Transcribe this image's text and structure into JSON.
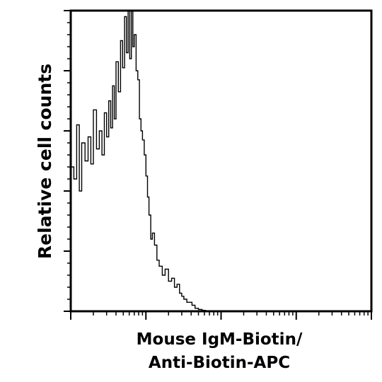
{
  "chart_data": {
    "type": "area",
    "title": "",
    "ylabel": "Relative cell counts",
    "xlabel_lines": [
      "Mouse IgM-Biotin/",
      "Anti-Biotin-APC"
    ],
    "x_scale": "log",
    "xlim": [
      1,
      10000
    ],
    "ylim": [
      0,
      100
    ],
    "x_major_ticks": [
      1,
      10,
      100,
      1000,
      10000
    ],
    "y_major_ticks": [
      0,
      20,
      40,
      60,
      80,
      100
    ],
    "tick_labels_shown": false,
    "grid": false,
    "legend": "none",
    "colors": {
      "line": "#000000",
      "background": "#ffffff"
    },
    "series": [
      {
        "x": [
          1.0,
          1.1,
          1.2,
          1.3,
          1.4,
          1.55,
          1.7,
          1.85,
          2.0,
          2.2,
          2.4,
          2.6,
          2.8,
          3.0,
          3.2,
          3.4,
          3.6,
          3.8,
          4.0,
          4.3,
          4.6,
          4.9,
          5.2,
          5.5,
          5.8,
          6.1,
          6.4,
          6.7,
          7.0,
          7.4,
          7.8,
          8.2,
          8.6,
          9.0,
          9.5,
          10.0,
          10.5,
          11.0,
          11.6,
          12.2,
          13.0,
          14.0,
          15.0,
          16.5,
          18.0,
          20.0,
          22.0,
          24.0,
          26.0,
          28.0,
          30.0,
          32.0,
          35.0,
          38.0,
          41.0,
          45.0,
          50.0,
          56.0,
          62.0
        ],
        "y": [
          48,
          44,
          62,
          40,
          56,
          50,
          58,
          49,
          67,
          54,
          60,
          52,
          66,
          58,
          70,
          61,
          75,
          64,
          83,
          73,
          90,
          81,
          98,
          86,
          100,
          84,
          100,
          88,
          92,
          80,
          77,
          64,
          60,
          57,
          52,
          45,
          38,
          32,
          24,
          26,
          22,
          17,
          15,
          12,
          14,
          10,
          11,
          8,
          9,
          6,
          5,
          4,
          3,
          3,
          2,
          1,
          0.6,
          0.3,
          0
        ]
      }
    ]
  }
}
